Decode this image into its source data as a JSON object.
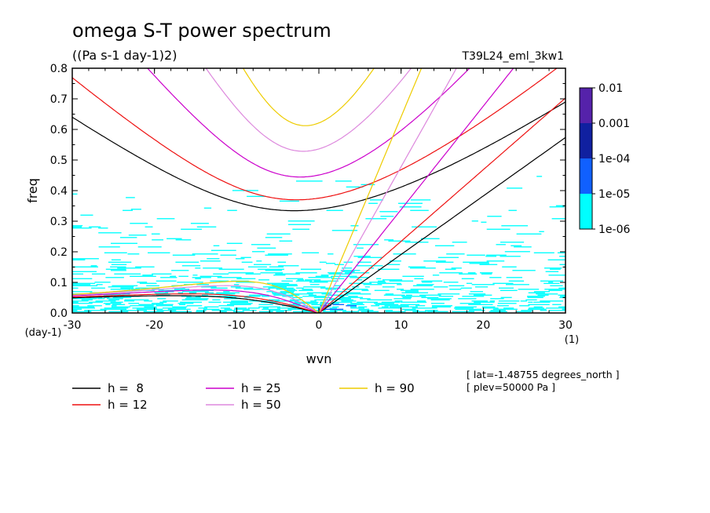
{
  "chart_data": {
    "type": "heatmap",
    "title": "omega S-T power spectrum",
    "subtitle": "((Pa s-1 day-1)2)",
    "run_label": "T39L24_eml_3kw1",
    "xlabel": "wvn",
    "ylabel": "freq",
    "x_unit": "(1)",
    "y_unit": "(day-1)",
    "xlim": [
      -30,
      30
    ],
    "ylim": [
      0,
      0.8
    ],
    "x_ticks": [
      "-30",
      "-20",
      "-10",
      "0",
      "10",
      "20",
      "30"
    ],
    "y_ticks": [
      "0.0",
      "0.1",
      "0.2",
      "0.3",
      "0.4",
      "0.5",
      "0.6",
      "0.7",
      "0.8"
    ],
    "grid": false,
    "colorbar": {
      "scale": "log",
      "labels": [
        "0.01",
        "0.001",
        "1e-04",
        "1e-05",
        "1e-06"
      ],
      "colors": [
        "#5522aa",
        "#1020a0",
        "#1060ff",
        "#00ffff"
      ]
    },
    "power_field": {
      "description_levels": [
        "1e-06",
        "1e-05",
        "1e-04",
        "0.001"
      ],
      "low_freq_band": [
        0,
        0.45
      ],
      "peak_region": {
        "wvn": [
          0,
          4
        ],
        "freq": [
          0.0,
          0.05
        ]
      }
    },
    "dispersion_curves": [
      {
        "name": "h =  8",
        "h": 8,
        "color": "#000000"
      },
      {
        "name": "h = 12",
        "h": 12,
        "color": "#ee1111"
      },
      {
        "name": "h = 25",
        "h": 25,
        "color": "#cc00cc"
      },
      {
        "name": "h = 50",
        "h": 50,
        "color": "#dd88dd"
      },
      {
        "name": "h = 90",
        "h": 90,
        "color": "#eecc00"
      }
    ],
    "legend_position": "bottom-left",
    "annotations": [
      "[ lat=-1.48755 degrees_north ]",
      "[ plev=50000 Pa ]"
    ]
  }
}
